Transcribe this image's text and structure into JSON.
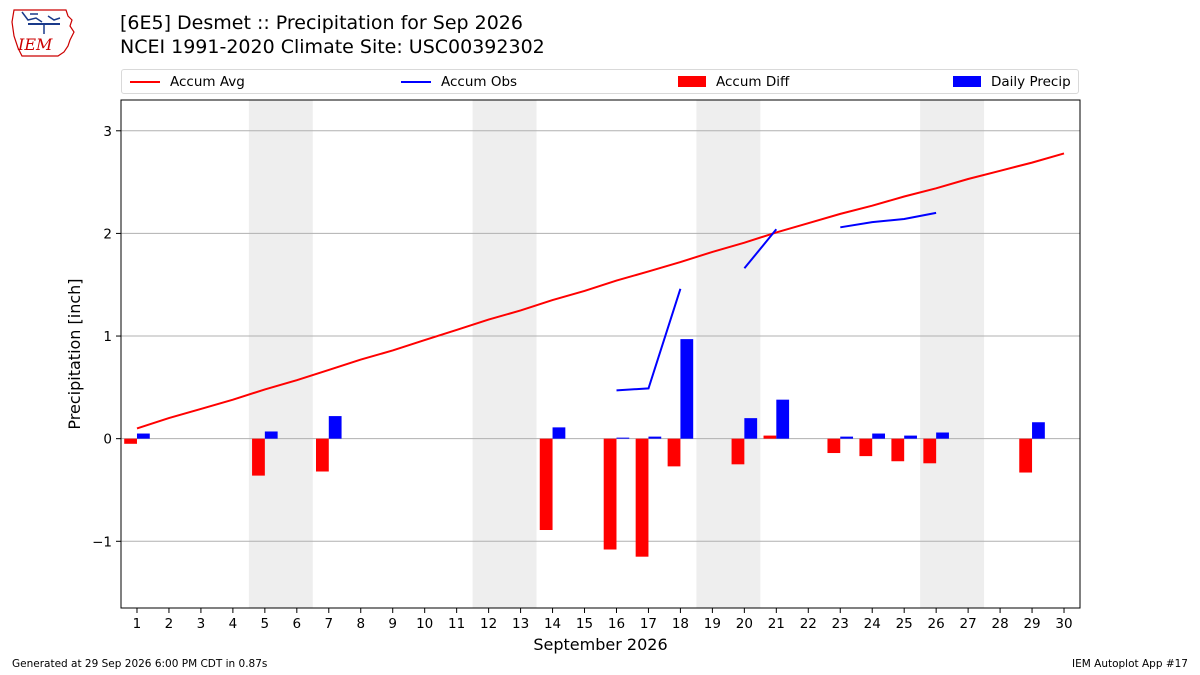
{
  "header": {
    "title_line1": "[6E5] Desmet :: Precipitation for Sep 2026",
    "title_line2": "NCEI 1991-2020 Climate Site: USC00392302",
    "logo_text": "IEM"
  },
  "footer": {
    "generated": "Generated at 29 Sep 2026 6:00 PM CDT in 0.87s",
    "app": "IEM Autoplot App #17"
  },
  "chart_data": {
    "type": "bar",
    "title": "[6E5] Desmet :: Precipitation for Sep 2026",
    "subtitle": "NCEI 1991-2020 Climate Site: USC00392302",
    "xlabel": "September 2026",
    "ylabel": "Precipitation [inch]",
    "xlim": [
      0.5,
      30.5
    ],
    "ylim": [
      -1.65,
      3.3
    ],
    "yticks": [
      -1,
      0,
      1,
      2,
      3
    ],
    "ytick_labels": [
      "−1",
      "0",
      "1",
      "2",
      "3"
    ],
    "x": [
      1,
      2,
      3,
      4,
      5,
      6,
      7,
      8,
      9,
      10,
      11,
      12,
      13,
      14,
      15,
      16,
      17,
      18,
      19,
      20,
      21,
      22,
      23,
      24,
      25,
      26,
      27,
      28,
      29,
      30
    ],
    "grid": true,
    "legend_position": "top",
    "weekend_shading": [
      [
        4.5,
        6.5
      ],
      [
        11.5,
        13.5
      ],
      [
        18.5,
        20.5
      ],
      [
        25.5,
        27.5
      ]
    ],
    "colors": {
      "accum_avg": "#ff0000",
      "accum_obs": "#0000ff",
      "accum_diff": "#ff0000",
      "daily_precip": "#0000ff",
      "shade": "#eeeeee",
      "grid": "#b0b0b0"
    },
    "series": [
      {
        "name": "Accum Avg",
        "type": "line",
        "values": [
          0.1,
          0.2,
          0.29,
          0.38,
          0.48,
          0.57,
          0.67,
          0.77,
          0.86,
          0.96,
          1.06,
          1.16,
          1.25,
          1.35,
          1.44,
          1.54,
          1.63,
          1.72,
          1.82,
          1.91,
          2.01,
          2.1,
          2.19,
          2.27,
          2.36,
          2.44,
          2.53,
          2.61,
          2.69,
          2.78
        ]
      },
      {
        "name": "Accum Obs",
        "type": "line",
        "values": [
          null,
          null,
          null,
          null,
          null,
          null,
          null,
          null,
          null,
          null,
          null,
          null,
          null,
          null,
          null,
          0.47,
          0.49,
          1.46,
          null,
          1.66,
          2.04,
          null,
          2.06,
          2.11,
          2.14,
          2.2,
          null,
          null,
          null,
          null
        ]
      },
      {
        "name": "Accum Diff",
        "type": "bar",
        "values": [
          -0.05,
          null,
          null,
          null,
          -0.36,
          null,
          -0.32,
          null,
          null,
          null,
          null,
          null,
          null,
          -0.89,
          null,
          -1.08,
          -1.15,
          -0.27,
          null,
          -0.25,
          0.03,
          null,
          -0.14,
          -0.17,
          -0.22,
          -0.24,
          null,
          null,
          -0.33,
          null
        ]
      },
      {
        "name": "Daily Precip",
        "type": "bar",
        "values": [
          0.05,
          null,
          null,
          null,
          0.07,
          null,
          0.22,
          null,
          null,
          null,
          null,
          null,
          null,
          0.11,
          null,
          0.01,
          0.02,
          0.97,
          null,
          0.2,
          0.38,
          null,
          0.02,
          0.05,
          0.03,
          0.06,
          null,
          null,
          0.16,
          null
        ]
      }
    ]
  }
}
